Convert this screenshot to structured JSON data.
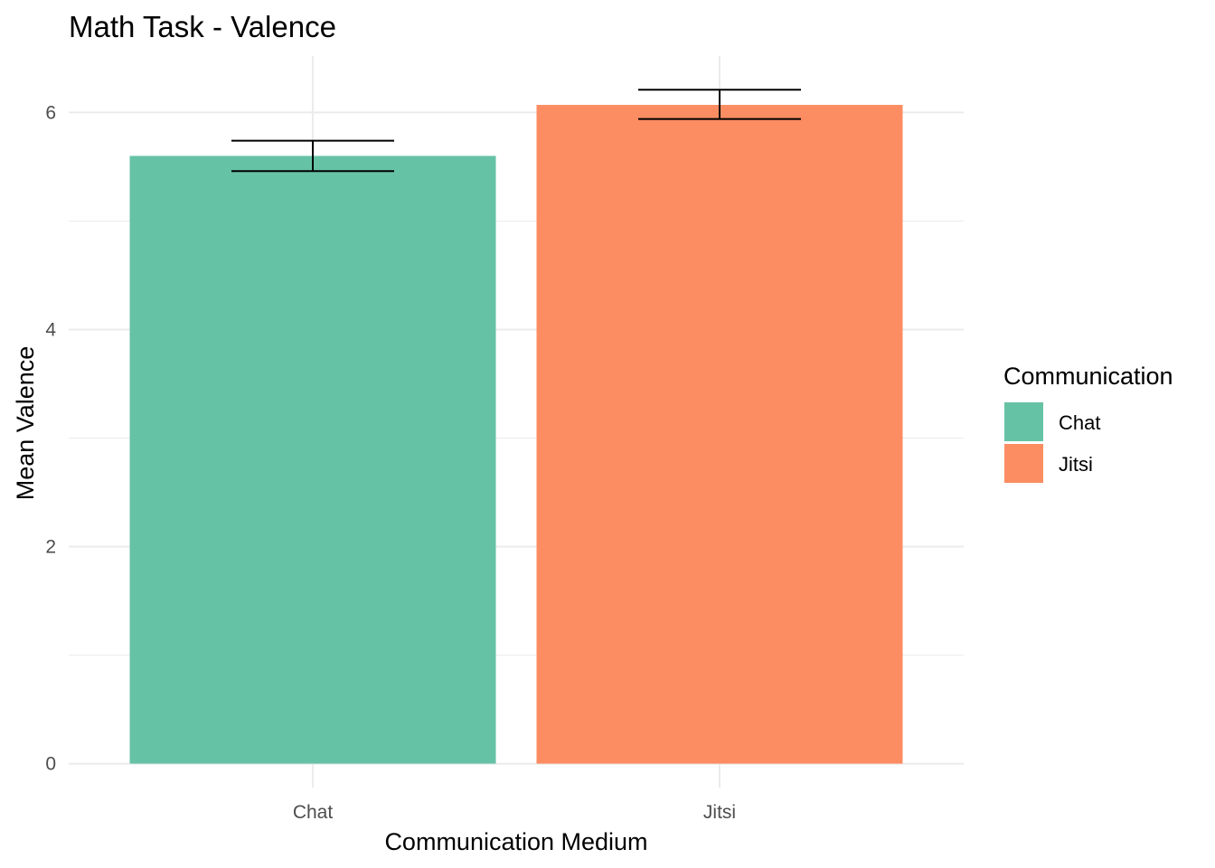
{
  "chart_data": {
    "type": "bar",
    "title": "Math Task - Valence",
    "xlabel": "Communication Medium",
    "ylabel": "Mean Valence",
    "categories": [
      "Chat",
      "Jitsi"
    ],
    "values": [
      5.6,
      6.07
    ],
    "error_bars": [
      {
        "lower": 5.46,
        "upper": 5.74
      },
      {
        "lower": 5.94,
        "upper": 6.21
      }
    ],
    "colors": [
      "#66c2a5",
      "#fc8d62"
    ],
    "ylim": [
      -0.22,
      6.52
    ],
    "yticks": [
      0,
      2,
      4,
      6
    ],
    "ytick_labels": [
      "0",
      "2",
      "4",
      "6"
    ],
    "grid": true,
    "legend": {
      "title": "Communication",
      "placement": "right",
      "entries": [
        {
          "label": "Chat",
          "color": "#66c2a5"
        },
        {
          "label": "Jitsi",
          "color": "#fc8d62"
        }
      ]
    }
  }
}
